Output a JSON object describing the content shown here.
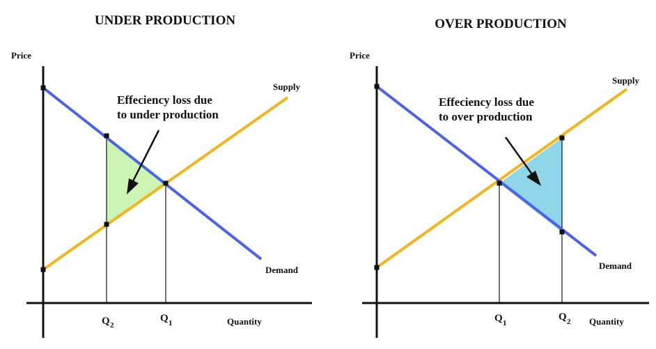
{
  "colors": {
    "demand": "#4a62f0",
    "supply": "#f4b41a",
    "under_loss_fill": "#ccf5b4",
    "over_loss_fill": "#8fd6e8",
    "axis": "#111111"
  },
  "left": {
    "title": "UNDER PRODUCTION",
    "y_axis_label": "Price",
    "x_axis_label": "Quantity",
    "supply_label": "Supply",
    "demand_label": "Demand",
    "annotation_line1": "Effeciency loss due",
    "annotation_line2": "to under production",
    "q_main": "Q",
    "q_left_sub": "2",
    "q_right_sub": "1"
  },
  "right": {
    "title": "OVER PRODUCTION",
    "y_axis_label": "Price",
    "x_axis_label": "Quantity",
    "supply_label": "Supply",
    "demand_label": "Demand",
    "annotation_line1": "Effeciency loss due",
    "annotation_line2": "to over production",
    "q_main": "Q",
    "q_left_sub": "1",
    "q_right_sub": "2"
  }
}
